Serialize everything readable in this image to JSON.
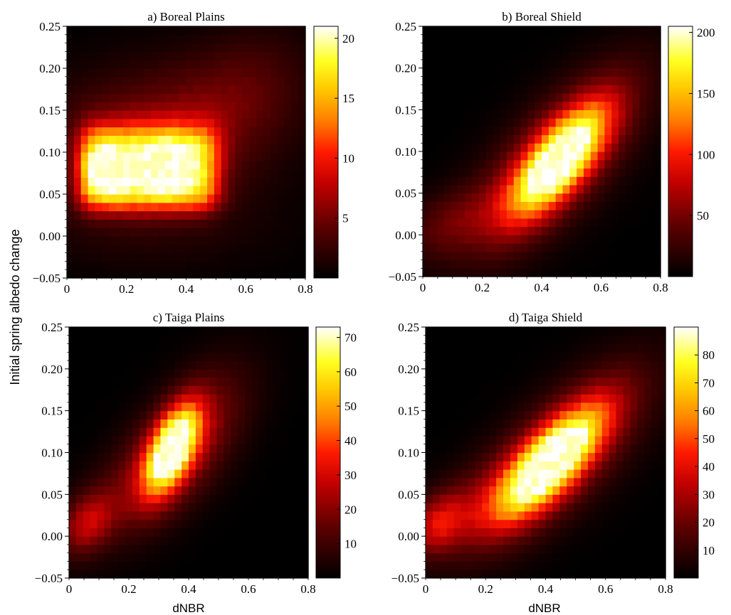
{
  "figure": {
    "ylabel": "Initial spring albedo change",
    "xlabel": "dNBR"
  },
  "chart_data": [
    {
      "type": "heatmap",
      "title": "a) Boreal Plains",
      "xlim": [
        0,
        0.8
      ],
      "ylim": [
        -0.05,
        0.25
      ],
      "xticks": [
        "0",
        "0.2",
        "0.4",
        "0.6",
        "0.8"
      ],
      "yticks": [
        "−0.05",
        "0.00",
        "0.05",
        "0.10",
        "0.15",
        "0.20",
        "0.25"
      ],
      "colorbar": {
        "min": 0,
        "max": 21,
        "ticks": [
          5,
          10,
          15,
          20
        ]
      },
      "density_peaks": [
        {
          "x": 0.12,
          "y": 0.08,
          "value": 20
        },
        {
          "x": 0.34,
          "y": 0.085,
          "value": 20
        },
        {
          "x": 0.3,
          "y": 0.07,
          "value": 14
        }
      ]
    },
    {
      "type": "heatmap",
      "title": "b) Boreal Shield",
      "xlim": [
        0,
        0.8
      ],
      "ylim": [
        -0.05,
        0.25
      ],
      "xticks": [
        "0",
        "0.2",
        "0.4",
        "0.6",
        "0.8"
      ],
      "yticks": [
        "−0.05",
        "0.00",
        "0.05",
        "0.10",
        "0.15",
        "0.20",
        "0.25"
      ],
      "colorbar": {
        "min": 0,
        "max": 205,
        "ticks": [
          50,
          100,
          150,
          200
        ]
      },
      "density_peaks": [
        {
          "x": 0.46,
          "y": 0.09,
          "value": 200
        }
      ]
    },
    {
      "type": "heatmap",
      "title": "c) Taiga Plains",
      "xlim": [
        0,
        0.8
      ],
      "ylim": [
        -0.05,
        0.25
      ],
      "xticks": [
        "0",
        "0.2",
        "0.4",
        "0.6",
        "0.8"
      ],
      "yticks": [
        "−0.05",
        "0.00",
        "0.05",
        "0.10",
        "0.15",
        "0.20",
        "0.25"
      ],
      "colorbar": {
        "min": 0,
        "max": 73,
        "ticks": [
          10,
          20,
          30,
          40,
          50,
          60,
          70
        ]
      },
      "density_peaks": [
        {
          "x": 0.35,
          "y": 0.105,
          "value": 70
        },
        {
          "x": 0.06,
          "y": 0.015,
          "value": 22
        }
      ]
    },
    {
      "type": "heatmap",
      "title": "d) Taiga Shield",
      "xlim": [
        0,
        0.8
      ],
      "ylim": [
        -0.05,
        0.25
      ],
      "xticks": [
        "0",
        "0.2",
        "0.4",
        "0.6",
        "0.8"
      ],
      "yticks": [
        "−0.05",
        "0.00",
        "0.05",
        "0.10",
        "0.15",
        "0.20",
        "0.25"
      ],
      "colorbar": {
        "min": 0,
        "max": 90,
        "ticks": [
          10,
          20,
          30,
          40,
          50,
          60,
          70,
          80
        ]
      },
      "density_peaks": [
        {
          "x": 0.42,
          "y": 0.09,
          "value": 85
        },
        {
          "x": 0.04,
          "y": 0.015,
          "value": 30
        }
      ]
    }
  ]
}
